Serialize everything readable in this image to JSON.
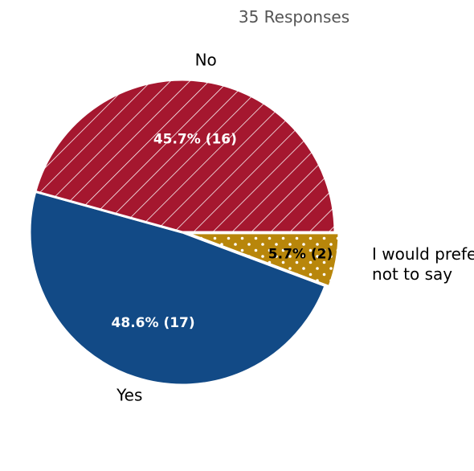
{
  "header": {
    "subtitle": "35 Responses"
  },
  "chart_data": {
    "type": "pie",
    "total_responses": 35,
    "slices": [
      {
        "name": "I would prefer not to say",
        "label_lines": [
          "I would prefer",
          "not to say"
        ],
        "percent": 5.7,
        "count": 2,
        "value_label": "5.7% (2)",
        "color": "#B8860B",
        "pattern": "dots",
        "value_label_color": "#000000"
      },
      {
        "name": "Yes",
        "label_lines": [
          "Yes"
        ],
        "percent": 48.6,
        "count": 17,
        "value_label": "48.6% (17)",
        "color": "#124A86",
        "pattern": "none",
        "value_label_color": "#FFFFFF"
      },
      {
        "name": "No",
        "label_lines": [
          "No"
        ],
        "percent": 45.7,
        "count": 16,
        "value_label": "45.7% (16)",
        "color": "#A5172F",
        "pattern": "diagonal-lines",
        "value_label_color": "#FFFFFF"
      }
    ],
    "legend": "none"
  }
}
